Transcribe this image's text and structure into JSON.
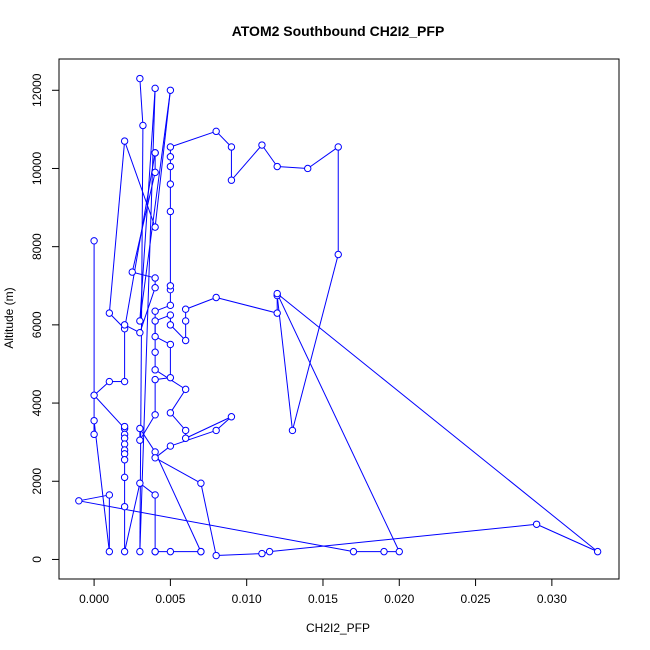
{
  "chart_data": {
    "type": "line",
    "title": "ATOM2 Southbound CH2I2_PFP",
    "xlabel": "CH2I2_PFP",
    "ylabel": "Altitude (m)",
    "xlim": [
      -0.0023,
      0.0344
    ],
    "ylim": [
      -500,
      12800
    ],
    "xticks": [
      0.0,
      0.005,
      0.01,
      0.015,
      0.02,
      0.025,
      0.03
    ],
    "xtick_labels": [
      "0.000",
      "0.005",
      "0.010",
      "0.015",
      "0.020",
      "0.025",
      "0.030"
    ],
    "yticks": [
      0,
      2000,
      4000,
      6000,
      8000,
      10000,
      12000
    ],
    "ytick_labels": [
      "0",
      "2000",
      "4000",
      "6000",
      "8000",
      "10000",
      "12000"
    ],
    "grid": false,
    "legend": "none",
    "series": [
      {
        "color": "#0000ff",
        "marker": "open-circle",
        "points": [
          [
            0.003,
            12300
          ],
          [
            0.0032,
            11100
          ],
          [
            0.003,
            200
          ],
          [
            0.004,
            12050
          ],
          [
            0.003,
            6100
          ],
          [
            0.005,
            12000
          ],
          [
            0.004,
            8500
          ],
          [
            0.002,
            10700
          ],
          [
            0.001,
            6300
          ],
          [
            0.002,
            5900
          ],
          [
            0.004,
            10400
          ],
          [
            0.004,
            10400
          ],
          [
            0.004,
            9900
          ],
          [
            0.0025,
            7350
          ],
          [
            0.004,
            7200
          ],
          [
            0.004,
            6950
          ],
          [
            0.003,
            5800
          ],
          [
            0.002,
            6000
          ],
          [
            0.002,
            4550
          ],
          [
            0.001,
            4550
          ],
          [
            0.0,
            4200
          ],
          [
            0.002,
            3350
          ],
          [
            0.002,
            3400
          ],
          [
            0.002,
            3200
          ],
          [
            0.002,
            3100
          ],
          [
            0.002,
            2950
          ],
          [
            0.002,
            2800
          ],
          [
            0.002,
            2700
          ],
          [
            0.002,
            2550
          ],
          [
            0.002,
            2100
          ],
          [
            0.002,
            1350
          ],
          [
            0.002,
            200
          ],
          [
            0.003,
            1950
          ],
          [
            0.004,
            1650
          ],
          [
            0.004,
            200
          ],
          [
            0.004,
            200
          ],
          [
            0.005,
            200
          ],
          [
            0.007,
            200
          ],
          [
            0.007,
            200
          ],
          [
            0.004,
            2750
          ],
          [
            0.003,
            3350
          ],
          [
            0.003,
            3050
          ],
          [
            0.004,
            3700
          ],
          [
            0.004,
            4600
          ],
          [
            0.005,
            4650
          ],
          [
            0.005,
            5500
          ],
          [
            0.004,
            5700
          ],
          [
            0.004,
            6350
          ],
          [
            0.005,
            6500
          ],
          [
            0.005,
            6900
          ],
          [
            0.005,
            7000
          ],
          [
            0.005,
            8900
          ],
          [
            0.005,
            9600
          ],
          [
            0.005,
            10050
          ],
          [
            0.005,
            10300
          ],
          [
            0.005,
            10550
          ],
          [
            0.008,
            10950
          ],
          [
            0.009,
            10550
          ],
          [
            0.009,
            9700
          ],
          [
            0.011,
            10600
          ],
          [
            0.012,
            10050
          ],
          [
            0.014,
            10000
          ],
          [
            0.016,
            10550
          ],
          [
            0.016,
            7800
          ],
          [
            0.013,
            3300
          ],
          [
            0.012,
            6750
          ],
          [
            0.012,
            6300
          ],
          [
            0.008,
            6700
          ],
          [
            0.006,
            6400
          ],
          [
            0.006,
            6100
          ],
          [
            0.006,
            5600
          ],
          [
            0.005,
            6000
          ],
          [
            0.005,
            6250
          ],
          [
            0.004,
            6100
          ],
          [
            0.004,
            5300
          ],
          [
            0.004,
            4850
          ],
          [
            0.006,
            4350
          ],
          [
            0.005,
            3750
          ],
          [
            0.006,
            3300
          ],
          [
            0.006,
            3100
          ],
          [
            0.009,
            3650
          ],
          [
            0.008,
            3300
          ],
          [
            0.005,
            2900
          ],
          [
            0.004,
            2600
          ],
          [
            0.007,
            1950
          ],
          [
            0.008,
            100
          ],
          [
            0.011,
            150
          ],
          [
            0.0115,
            200
          ],
          [
            0.029,
            900
          ],
          [
            0.033,
            200
          ],
          [
            0.012,
            6800
          ],
          [
            0.02,
            200
          ],
          [
            0.019,
            200
          ],
          [
            0.017,
            200
          ],
          [
            -0.001,
            1500
          ],
          [
            0.001,
            1650
          ],
          [
            0.001,
            200
          ],
          [
            0.0,
            3550
          ],
          [
            0.0,
            3200
          ],
          [
            0.0,
            8150
          ]
        ]
      }
    ]
  }
}
